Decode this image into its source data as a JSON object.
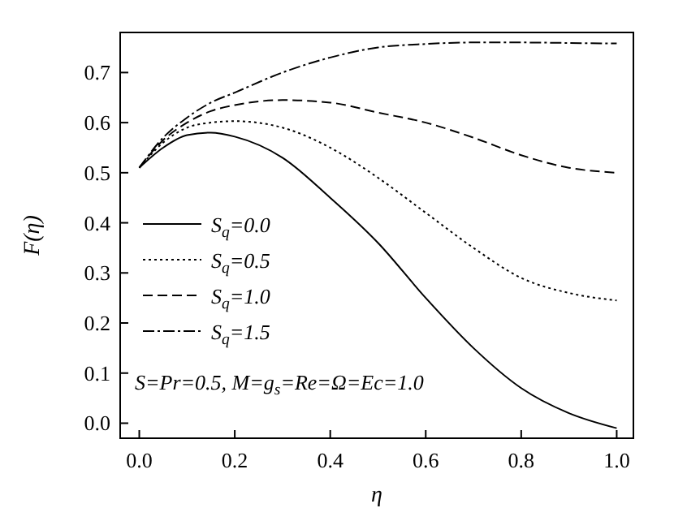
{
  "chart_data": {
    "type": "line",
    "xlabel": "η",
    "ylabel": "F(η)",
    "xlim": [
      -0.04,
      1.035
    ],
    "ylim": [
      -0.03,
      0.78
    ],
    "xticks": [
      {
        "value": 0,
        "label": "0.0"
      },
      0.2,
      0.4,
      0.6,
      0.8,
      {
        "value": 1,
        "label": "1.0"
      }
    ],
    "yticks": [
      {
        "value": 0,
        "label": "0.0"
      },
      0.1,
      0.2,
      0.3,
      0.4,
      0.5,
      0.6,
      0.7
    ],
    "x": [
      0,
      0.05,
      0.1,
      0.15,
      0.2,
      0.3,
      0.4,
      0.5,
      0.6,
      0.7,
      0.8,
      0.9,
      1.0
    ],
    "legend": "left",
    "grid": false,
    "series": [
      {
        "name": "S$_{q}$=0.0",
        "color": "#000000",
        "line_style": "solid",
        "values": [
          0.51,
          0.55,
          0.575,
          0.58,
          0.572,
          0.53,
          0.45,
          0.36,
          0.25,
          0.15,
          0.07,
          0.02,
          -0.01
        ]
      },
      {
        "name": "S$_{q}$=0.5",
        "color": "#000000",
        "line_style": "dotted",
        "values": [
          0.51,
          0.56,
          0.59,
          0.6,
          0.603,
          0.59,
          0.55,
          0.49,
          0.42,
          0.35,
          0.29,
          0.26,
          0.245
        ]
      },
      {
        "name": "S$_{q}$=1.0",
        "color": "#000000",
        "line_style": "dashed",
        "values": [
          0.51,
          0.565,
          0.6,
          0.623,
          0.635,
          0.645,
          0.64,
          0.62,
          0.6,
          0.57,
          0.535,
          0.51,
          0.5
        ]
      },
      {
        "name": "S$_{q}$=1.5",
        "color": "#000000",
        "line_style": "dashdot",
        "values": [
          0.51,
          0.57,
          0.61,
          0.64,
          0.66,
          0.7,
          0.73,
          0.75,
          0.757,
          0.76,
          0.76,
          0.759,
          0.758
        ]
      }
    ],
    "annotations": [
      "S=Pr=0.5, M=g$_{s}$=Re=Ω=Ec=1.0"
    ]
  }
}
